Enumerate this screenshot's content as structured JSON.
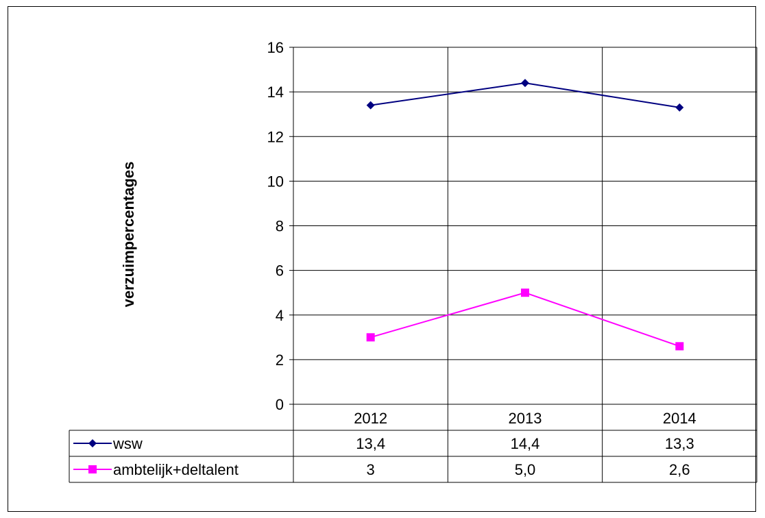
{
  "chart_data": {
    "type": "line",
    "title": "",
    "xlabel": "",
    "ylabel": "verzuimpercentages",
    "categories": [
      "2012",
      "2013",
      "2014"
    ],
    "ylim": [
      0,
      16
    ],
    "yticks": [
      0,
      2,
      4,
      6,
      8,
      10,
      12,
      14,
      16
    ],
    "grid": true,
    "legend": "data-table",
    "series": [
      {
        "name": "wsw",
        "values": [
          13.4,
          14.4,
          13.3
        ],
        "labels": [
          "13,4",
          "14,4",
          "13,3"
        ],
        "color": "#000080",
        "marker": "diamond"
      },
      {
        "name": "ambtelijk+deltalent",
        "values": [
          3,
          5.0,
          2.6
        ],
        "labels": [
          "3",
          "5,0",
          "2,6"
        ],
        "color": "#ff00ff",
        "marker": "square"
      }
    ]
  }
}
